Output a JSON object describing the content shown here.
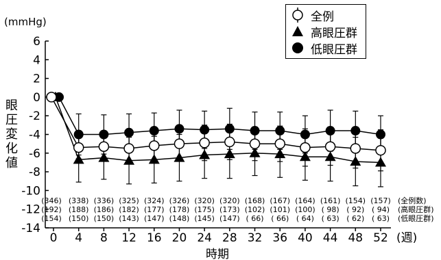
{
  "chart_data": {
    "type": "line",
    "ylabel": "眼圧変化値",
    "yunit": "(mmHg)",
    "xlabel": "時期",
    "xunit": "(週)",
    "ylim": [
      -14,
      6
    ],
    "yticks": [
      "6",
      "4",
      "2",
      "0",
      "-2",
      "-4",
      "-6",
      "-8",
      "-10",
      "-12",
      "-14"
    ],
    "x": [
      0,
      4,
      8,
      12,
      16,
      20,
      24,
      28,
      32,
      36,
      40,
      44,
      48,
      52
    ],
    "xticks": [
      "0",
      "4",
      "8",
      "12",
      "16",
      "20",
      "24",
      "28",
      "32",
      "36",
      "40",
      "44",
      "48",
      "52"
    ],
    "series": [
      {
        "name": "全例",
        "marker": "open-circle",
        "values": [
          0,
          -5.4,
          -5.3,
          -5.5,
          -5.2,
          -5.0,
          -4.9,
          -4.8,
          -5.0,
          -5.0,
          -5.4,
          -5.3,
          -5.5,
          -5.7
        ],
        "sd": [
          0,
          1.2,
          1.5,
          1.6,
          1.7,
          1.8,
          1.9,
          1.9,
          1.8,
          1.9,
          2.0,
          2.0,
          2.1,
          2.2
        ],
        "n": [
          "(346)",
          "(338)",
          "(336)",
          "(325)",
          "(324)",
          "(326)",
          "(320)",
          "(320)",
          "(168)",
          "(167)",
          "(164)",
          "(161)",
          "(154)",
          "(157)"
        ],
        "n_label": "(全例数)"
      },
      {
        "name": "高眼圧群",
        "marker": "filled-triangle",
        "values": [
          0,
          -6.7,
          -6.5,
          -6.8,
          -6.7,
          -6.5,
          -6.2,
          -6.1,
          -6.0,
          -6.1,
          -6.4,
          -6.4,
          -6.9,
          -7.0
        ],
        "sd": [
          0,
          2.4,
          2.3,
          2.5,
          2.5,
          2.5,
          2.5,
          2.6,
          2.4,
          2.5,
          2.5,
          2.6,
          2.6,
          2.6
        ],
        "n": [
          "(192)",
          "(188)",
          "(186)",
          "(182)",
          "(177)",
          "(178)",
          "(175)",
          "(173)",
          "(102)",
          "(101)",
          "(100)",
          "( 98)",
          "( 92)",
          "( 94)"
        ],
        "n_label": "(高眼圧群)"
      },
      {
        "name": "低眼圧群",
        "marker": "filled-circle",
        "values": [
          0,
          -4.0,
          -4.0,
          -3.8,
          -3.6,
          -3.4,
          -3.5,
          -3.4,
          -3.6,
          -3.6,
          -4.0,
          -3.6,
          -3.6,
          -4.0
        ],
        "sd": [
          0,
          2.2,
          2.1,
          2.0,
          1.9,
          2.0,
          2.0,
          2.2,
          2.0,
          2.0,
          2.0,
          2.2,
          2.1,
          2.0
        ],
        "n": [
          "(154)",
          "(150)",
          "(150)",
          "(143)",
          "(147)",
          "(148)",
          "(145)",
          "(147)",
          "( 66)",
          "( 66)",
          "( 64)",
          "( 63)",
          "( 62)",
          "( 63)"
        ],
        "n_label": "(低眼圧群)"
      }
    ],
    "legend": "top-right",
    "grid": false
  }
}
